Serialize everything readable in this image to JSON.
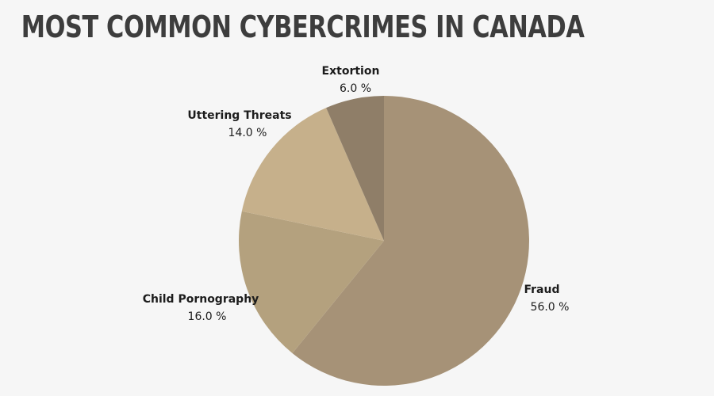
{
  "chart_data": {
    "type": "pie",
    "title": "MOST COMMON CYBERCRIMES IN CANADA",
    "categories": [
      "Fraud",
      "Child Pornography",
      "Uttering Threats",
      "Extortion"
    ],
    "values": [
      56.0,
      16.0,
      14.0,
      6.0
    ],
    "value_labels": [
      "56.0 %",
      "16.0 %",
      "14.0 %",
      "6.0 %"
    ],
    "start_angle_deg": 0,
    "direction": "clockwise",
    "legend": "none",
    "colors": [
      "#a69277",
      "#b4a17e",
      "#c6b08b",
      "#8f7e68"
    ]
  }
}
